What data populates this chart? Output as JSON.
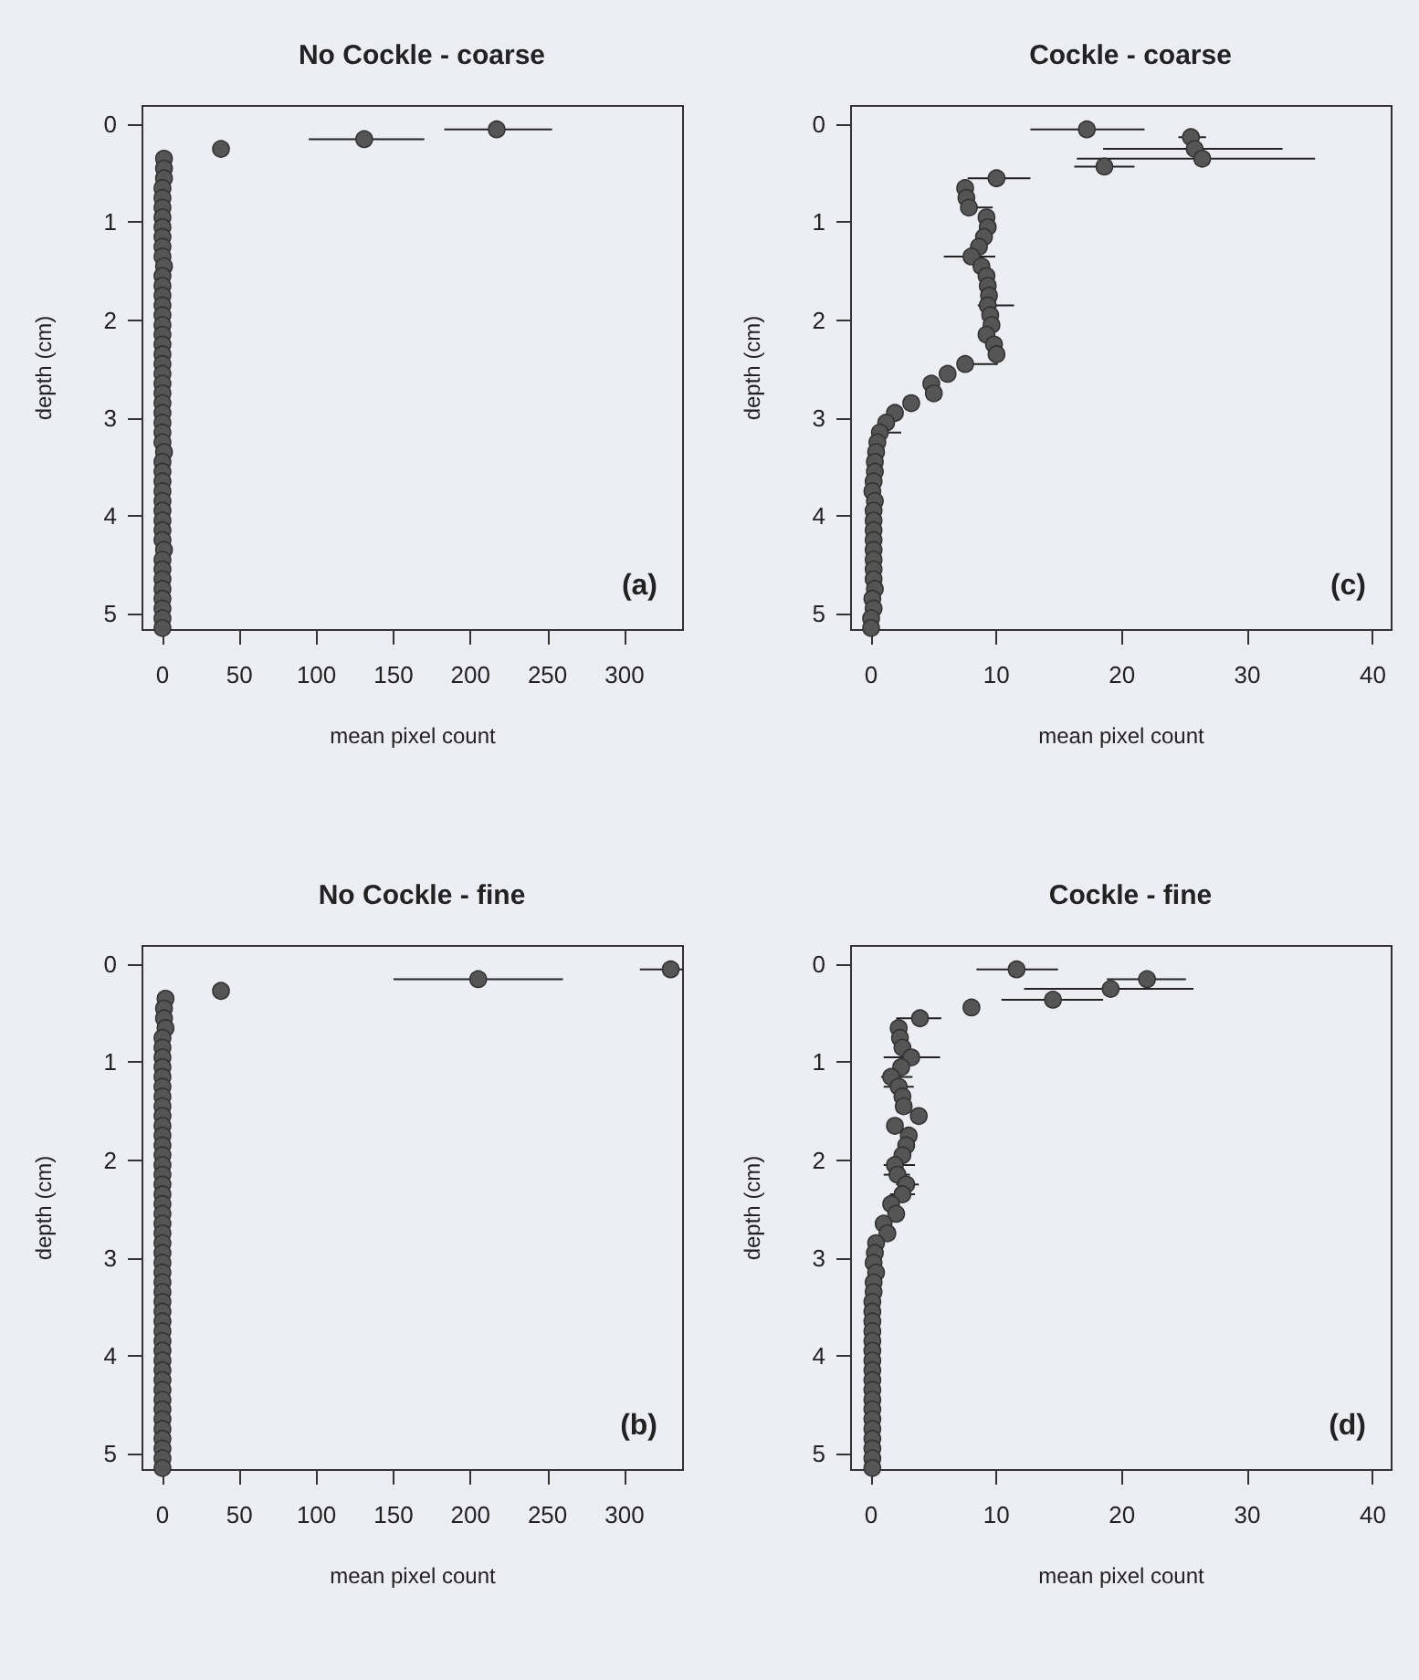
{
  "chart_data": [
    {
      "type": "scatter",
      "title": "No Cockle - coarse",
      "xlabel": "mean pixel count",
      "ylabel": "depth (cm)",
      "annotations": [
        "(a)"
      ],
      "xlim": [
        -13,
        338
      ],
      "xticks": [
        0,
        50,
        100,
        150,
        200,
        250,
        300
      ],
      "ylim": [
        5.17,
        -0.19
      ],
      "yticks": [
        0,
        1,
        2,
        3,
        4,
        5
      ],
      "marker": "circle",
      "grid": false,
      "series": [
        {
          "color": "#555555",
          "x": [
            217,
            131,
            38,
            1,
            1,
            1,
            0,
            0,
            0,
            0,
            0,
            0,
            0,
            0,
            1,
            0,
            0,
            0,
            0,
            0,
            0,
            0,
            0,
            0,
            0,
            0,
            0,
            0,
            0,
            0,
            0,
            0,
            0,
            1,
            0,
            0,
            0,
            0,
            0,
            0,
            0,
            0,
            0,
            1,
            0,
            0,
            0,
            0,
            0,
            0,
            0,
            0
          ],
          "values": [
            0.05,
            0.15,
            0.25,
            0.35,
            0.45,
            0.55,
            0.65,
            0.75,
            0.85,
            0.95,
            1.05,
            1.15,
            1.25,
            1.35,
            1.45,
            1.55,
            1.65,
            1.75,
            1.85,
            1.95,
            2.05,
            2.15,
            2.25,
            2.35,
            2.45,
            2.55,
            2.65,
            2.75,
            2.85,
            2.95,
            3.05,
            3.15,
            3.25,
            3.35,
            3.45,
            3.55,
            3.65,
            3.75,
            3.85,
            3.95,
            4.05,
            4.15,
            4.25,
            4.35,
            4.45,
            4.55,
            4.65,
            4.75,
            4.85,
            4.95,
            5.05,
            5.15
          ],
          "xerrors": [
            [
              183,
              253
            ],
            [
              95,
              170
            ],
            null,
            null,
            null,
            null,
            null,
            null,
            null,
            null,
            null,
            null,
            null,
            null,
            null,
            null,
            null,
            null,
            null,
            null,
            null,
            null,
            null,
            null,
            null,
            null,
            null,
            null,
            null,
            null,
            null,
            null,
            null,
            null,
            null,
            null,
            null,
            null,
            null,
            null,
            null,
            null,
            null,
            null,
            null,
            null,
            null,
            null,
            null,
            null,
            null,
            null
          ]
        }
      ]
    },
    {
      "type": "scatter",
      "title": "Cockle - coarse",
      "xlabel": "mean pixel count",
      "ylabel": "depth (cm)",
      "annotations": [
        "(c)"
      ],
      "xlim": [
        -1.6,
        41.5
      ],
      "xticks": [
        0,
        10,
        20,
        30,
        40
      ],
      "ylim": [
        5.17,
        -0.19
      ],
      "yticks": [
        0,
        1,
        2,
        3,
        4,
        5
      ],
      "marker": "circle",
      "grid": false,
      "series": [
        {
          "color": "#555555",
          "x": [
            17.2,
            25.5,
            25.8,
            26.4,
            18.6,
            10.0,
            7.5,
            7.6,
            7.8,
            9.2,
            9.3,
            9.0,
            8.6,
            8.0,
            8.8,
            9.2,
            9.3,
            9.4,
            9.3,
            9.5,
            9.6,
            9.2,
            9.8,
            10.0,
            7.5,
            6.1,
            4.8,
            5.0,
            3.2,
            1.9,
            1.2,
            0.7,
            0.5,
            0.4,
            0.3,
            0.3,
            0.2,
            0.1,
            0.3,
            0.2,
            0.2,
            0.2,
            0.2,
            0.2,
            0.2,
            0.2,
            0.2,
            0.3,
            0.1,
            0.2,
            0,
            0
          ],
          "values": [
            0.05,
            0.13,
            0.25,
            0.35,
            0.43,
            0.55,
            0.65,
            0.75,
            0.85,
            0.95,
            1.05,
            1.15,
            1.25,
            1.35,
            1.45,
            1.55,
            1.65,
            1.75,
            1.85,
            1.95,
            2.05,
            2.15,
            2.25,
            2.35,
            2.45,
            2.55,
            2.65,
            2.75,
            2.85,
            2.95,
            3.05,
            3.15,
            3.25,
            3.35,
            3.45,
            3.55,
            3.65,
            3.75,
            3.85,
            3.95,
            4.05,
            4.15,
            4.25,
            4.35,
            4.45,
            4.55,
            4.65,
            4.75,
            4.85,
            4.95,
            5.05,
            5.15
          ],
          "xerrors": [
            [
              12.7,
              21.8
            ],
            [
              24.5,
              26.7
            ],
            [
              18.5,
              32.8
            ],
            [
              16.4,
              35.4
            ],
            [
              16.2,
              21
            ],
            [
              7.7,
              12.7
            ],
            null,
            null,
            [
              7.2,
              9.7
            ],
            null,
            null,
            null,
            null,
            [
              5.8,
              9.9
            ],
            null,
            null,
            null,
            null,
            [
              8.5,
              11.4
            ],
            null,
            null,
            null,
            null,
            null,
            [
              7.2,
              10.1
            ],
            null,
            null,
            null,
            null,
            null,
            null,
            [
              0,
              2.4
            ],
            null,
            null,
            null,
            null,
            null,
            null,
            null,
            null,
            null,
            null,
            null,
            null,
            null,
            null,
            null,
            null,
            null,
            null,
            null,
            null
          ]
        }
      ]
    },
    {
      "type": "scatter",
      "title": "No Cockle - fine",
      "xlabel": "mean pixel count",
      "ylabel": "depth (cm)",
      "annotations": [
        "(b)"
      ],
      "xlim": [
        -13,
        338
      ],
      "xticks": [
        0,
        50,
        100,
        150,
        200,
        250,
        300
      ],
      "ylim": [
        5.17,
        -0.19
      ],
      "yticks": [
        0,
        1,
        2,
        3,
        4,
        5
      ],
      "marker": "circle",
      "grid": false,
      "series": [
        {
          "color": "#555555",
          "x": [
            330,
            205,
            38,
            2,
            1,
            1,
            2,
            0,
            0,
            0,
            0,
            0,
            0,
            0,
            0,
            0,
            0,
            0,
            0,
            0,
            0,
            0,
            0,
            0,
            0,
            0,
            0,
            0,
            0,
            0,
            0,
            0,
            0,
            0,
            0,
            0,
            0,
            0,
            0,
            0,
            0,
            0,
            0,
            0,
            0,
            0,
            0,
            0,
            0,
            0,
            0,
            0
          ],
          "values": [
            0.05,
            0.15,
            0.27,
            0.35,
            0.45,
            0.55,
            0.65,
            0.75,
            0.85,
            0.95,
            1.05,
            1.15,
            1.25,
            1.35,
            1.45,
            1.55,
            1.65,
            1.75,
            1.85,
            1.95,
            2.05,
            2.15,
            2.25,
            2.35,
            2.45,
            2.55,
            2.65,
            2.75,
            2.85,
            2.95,
            3.05,
            3.15,
            3.25,
            3.35,
            3.45,
            3.55,
            3.65,
            3.75,
            3.85,
            3.95,
            4.05,
            4.15,
            4.25,
            4.35,
            4.45,
            4.55,
            4.65,
            4.75,
            4.85,
            4.95,
            5.05,
            5.15
          ],
          "xerrors": [
            [
              310,
              338
            ],
            [
              150,
              260
            ],
            null,
            null,
            null,
            null,
            null,
            null,
            null,
            null,
            null,
            null,
            null,
            null,
            null,
            null,
            null,
            null,
            null,
            null,
            null,
            null,
            null,
            null,
            null,
            null,
            null,
            null,
            null,
            null,
            null,
            null,
            null,
            null,
            null,
            null,
            null,
            null,
            null,
            null,
            null,
            null,
            null,
            null,
            null,
            null,
            null,
            null,
            null,
            null,
            null,
            null
          ]
        }
      ]
    },
    {
      "type": "scatter",
      "title": "Cockle - fine",
      "xlabel": "mean pixel count",
      "ylabel": "depth (cm)",
      "annotations": [
        "(d)"
      ],
      "xlim": [
        -1.6,
        41.5
      ],
      "xticks": [
        0,
        10,
        20,
        30,
        40
      ],
      "ylim": [
        5.17,
        -0.19
      ],
      "yticks": [
        0,
        1,
        2,
        3,
        4,
        5
      ],
      "marker": "circle",
      "grid": false,
      "series": [
        {
          "color": "#555555",
          "x": [
            11.6,
            22.0,
            19.1,
            14.5,
            8.0,
            3.9,
            2.2,
            2.3,
            2.5,
            3.2,
            2.4,
            1.6,
            2.2,
            2.5,
            2.6,
            3.8,
            1.9,
            3.0,
            2.8,
            2.5,
            1.9,
            2.1,
            2.8,
            2.5,
            1.6,
            2.0,
            1.0,
            1.3,
            0.4,
            0.3,
            0.2,
            0.4,
            0.2,
            0.2,
            0.1,
            0.1,
            0.1,
            0.1,
            0.1,
            0.1,
            0.1,
            0.1,
            0.1,
            0.1,
            0.1,
            0.1,
            0.1,
            0.1,
            0.1,
            0.1,
            0.1,
            0.1
          ],
          "values": [
            0.05,
            0.15,
            0.25,
            0.36,
            0.44,
            0.55,
            0.65,
            0.75,
            0.85,
            0.95,
            1.05,
            1.15,
            1.25,
            1.35,
            1.45,
            1.55,
            1.65,
            1.75,
            1.85,
            1.95,
            2.05,
            2.15,
            2.25,
            2.35,
            2.45,
            2.55,
            2.65,
            2.75,
            2.85,
            2.95,
            3.05,
            3.15,
            3.25,
            3.35,
            3.45,
            3.55,
            3.65,
            3.75,
            3.85,
            3.95,
            4.05,
            4.15,
            4.25,
            4.35,
            4.45,
            4.55,
            4.65,
            4.75,
            4.85,
            4.95,
            5.05,
            5.15
          ],
          "xerrors": [
            [
              8.4,
              14.9
            ],
            [
              18.8,
              25.1
            ],
            [
              12.2,
              25.7
            ],
            [
              10.4,
              18.5
            ],
            null,
            [
              2,
              5.6
            ],
            null,
            null,
            null,
            [
              1,
              5.5
            ],
            null,
            [
              0.8,
              3.3
            ],
            [
              1,
              3.4
            ],
            null,
            null,
            null,
            null,
            null,
            null,
            null,
            [
              1,
              3.5
            ],
            [
              1,
              3.1
            ],
            [
              2,
              3.8
            ],
            [
              1.5,
              3.5
            ],
            null,
            null,
            null,
            null,
            null,
            null,
            null,
            null,
            null,
            null,
            null,
            null,
            null,
            null,
            null,
            null,
            null,
            null,
            null,
            null,
            null,
            null,
            null,
            null,
            null,
            null,
            null,
            null
          ]
        }
      ]
    }
  ]
}
